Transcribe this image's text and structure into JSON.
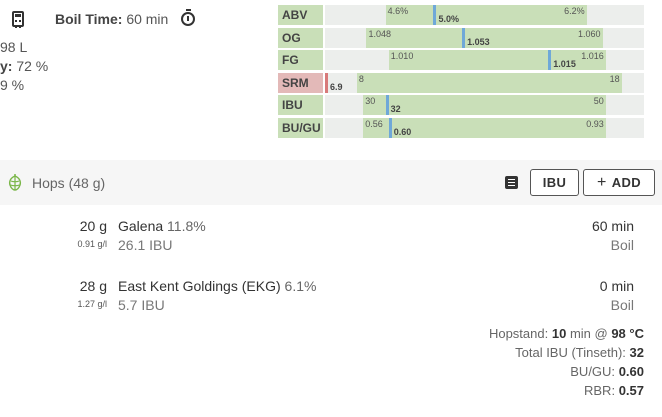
{
  "summary": {
    "boil_time_label": "Boil Time:",
    "boil_time_value": "60 min",
    "batch_volume_partial": "98 L",
    "efficiency_label_partial": "y:",
    "efficiency_value": "72 %",
    "third_partial": "9 %"
  },
  "metrics": [
    {
      "label": "ABV",
      "min": "4.6%",
      "max": "6.2%",
      "value": "5.0%",
      "range_start": 0.19,
      "range_end": 0.82,
      "marker": 0.34,
      "color": "#6fa8d8"
    },
    {
      "label": "OG",
      "min": "1.048",
      "max": "1.060",
      "value": "1.053",
      "range_start": 0.13,
      "range_end": 0.87,
      "marker": 0.43,
      "color": "#6fa8d8"
    },
    {
      "label": "FG",
      "min": "1.010",
      "max": "1.016",
      "value": "1.015",
      "range_start": 0.2,
      "range_end": 0.88,
      "marker": 0.7,
      "color": "#6fa8d8"
    },
    {
      "label": "SRM",
      "min": "8",
      "max": "18",
      "value": "6.9",
      "range_start": 0.1,
      "range_end": 0.93,
      "marker": 0.0,
      "color": "#d87a7a",
      "out_of_range": true
    },
    {
      "label": "IBU",
      "min": "30",
      "max": "50",
      "value": "32",
      "range_start": 0.12,
      "range_end": 0.88,
      "marker": 0.19,
      "color": "#6fa8d8"
    },
    {
      "label": "BU/GU",
      "min": "0.56",
      "max": "0.93",
      "value": "0.60",
      "range_start": 0.12,
      "range_end": 0.88,
      "marker": 0.2,
      "color": "#6fa8d8"
    }
  ],
  "hops": {
    "title": "Hops (48 g)",
    "ibu_button": "IBU",
    "add_button": "ADD",
    "items": [
      {
        "amount": "20 g",
        "density": "0.91 g/l",
        "name": "Galena",
        "alpha": "11.8%",
        "ibu": "26.1 IBU",
        "time": "60 min",
        "use": "Boil"
      },
      {
        "amount": "28 g",
        "density": "1.27 g/l",
        "name": "East Kent Goldings (EKG)",
        "alpha": "6.1%",
        "ibu": "5.7 IBU",
        "time": "0 min",
        "use": "Boil"
      }
    ],
    "hopstand_label": "Hopstand:",
    "hopstand_time": "10",
    "hopstand_mid": "min @",
    "hopstand_temp": "98 °C",
    "total_ibu_label": "Total IBU (Tinseth):",
    "total_ibu_value": "32",
    "bugu_label": "BU/GU:",
    "bugu_value": "0.60",
    "rbr_label": "RBR:",
    "rbr_value": "0.57"
  },
  "icons": {
    "calculator": "calculator-icon",
    "timer": "timer-icon",
    "hop": "hop-icon",
    "note": "note-icon"
  }
}
